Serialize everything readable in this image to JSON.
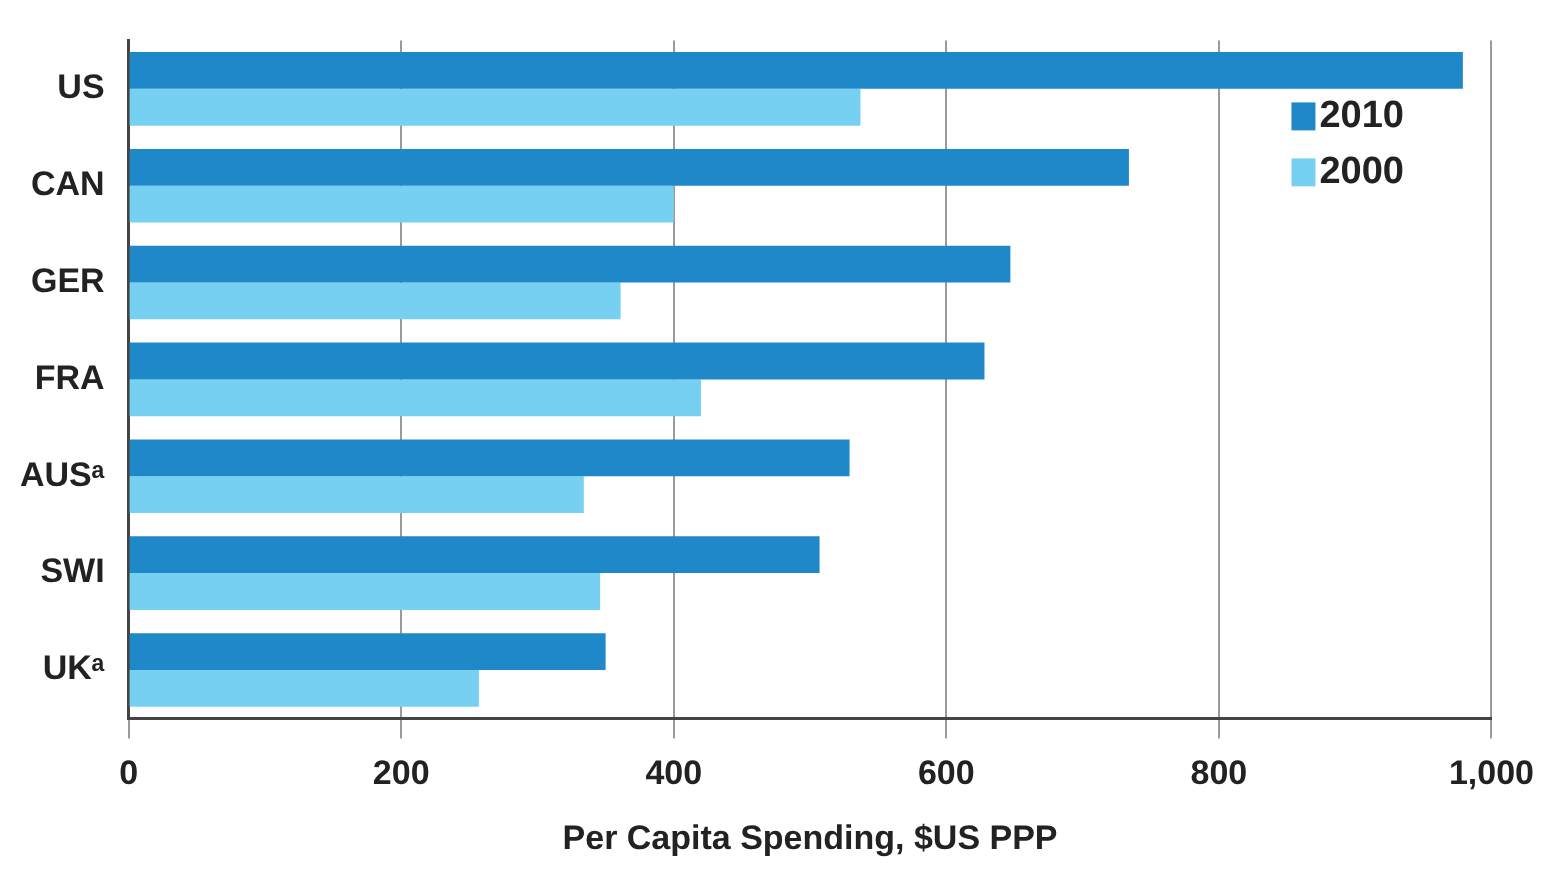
{
  "chart_data": {
    "type": "bar",
    "orientation": "horizontal",
    "xlabel": "Per Capita Spending, $US PPP",
    "categories": [
      "US",
      "CAN",
      "GER",
      "FRA",
      "AUSᵃ",
      "SWI",
      "UKᵃ"
    ],
    "series": [
      {
        "name": "2010",
        "color": "#1f88c8",
        "values": [
          979,
          734,
          647,
          628,
          529,
          507,
          350
        ]
      },
      {
        "name": "2000",
        "color": "#76d0f2",
        "values": [
          537,
          400,
          361,
          420,
          334,
          346,
          257
        ]
      }
    ],
    "xlim": [
      0,
      1000
    ],
    "xticks": [
      0,
      200,
      400,
      600,
      800,
      {
        "value": 1000,
        "label": "1,000"
      }
    ],
    "grid": "x",
    "legend": "top right"
  }
}
